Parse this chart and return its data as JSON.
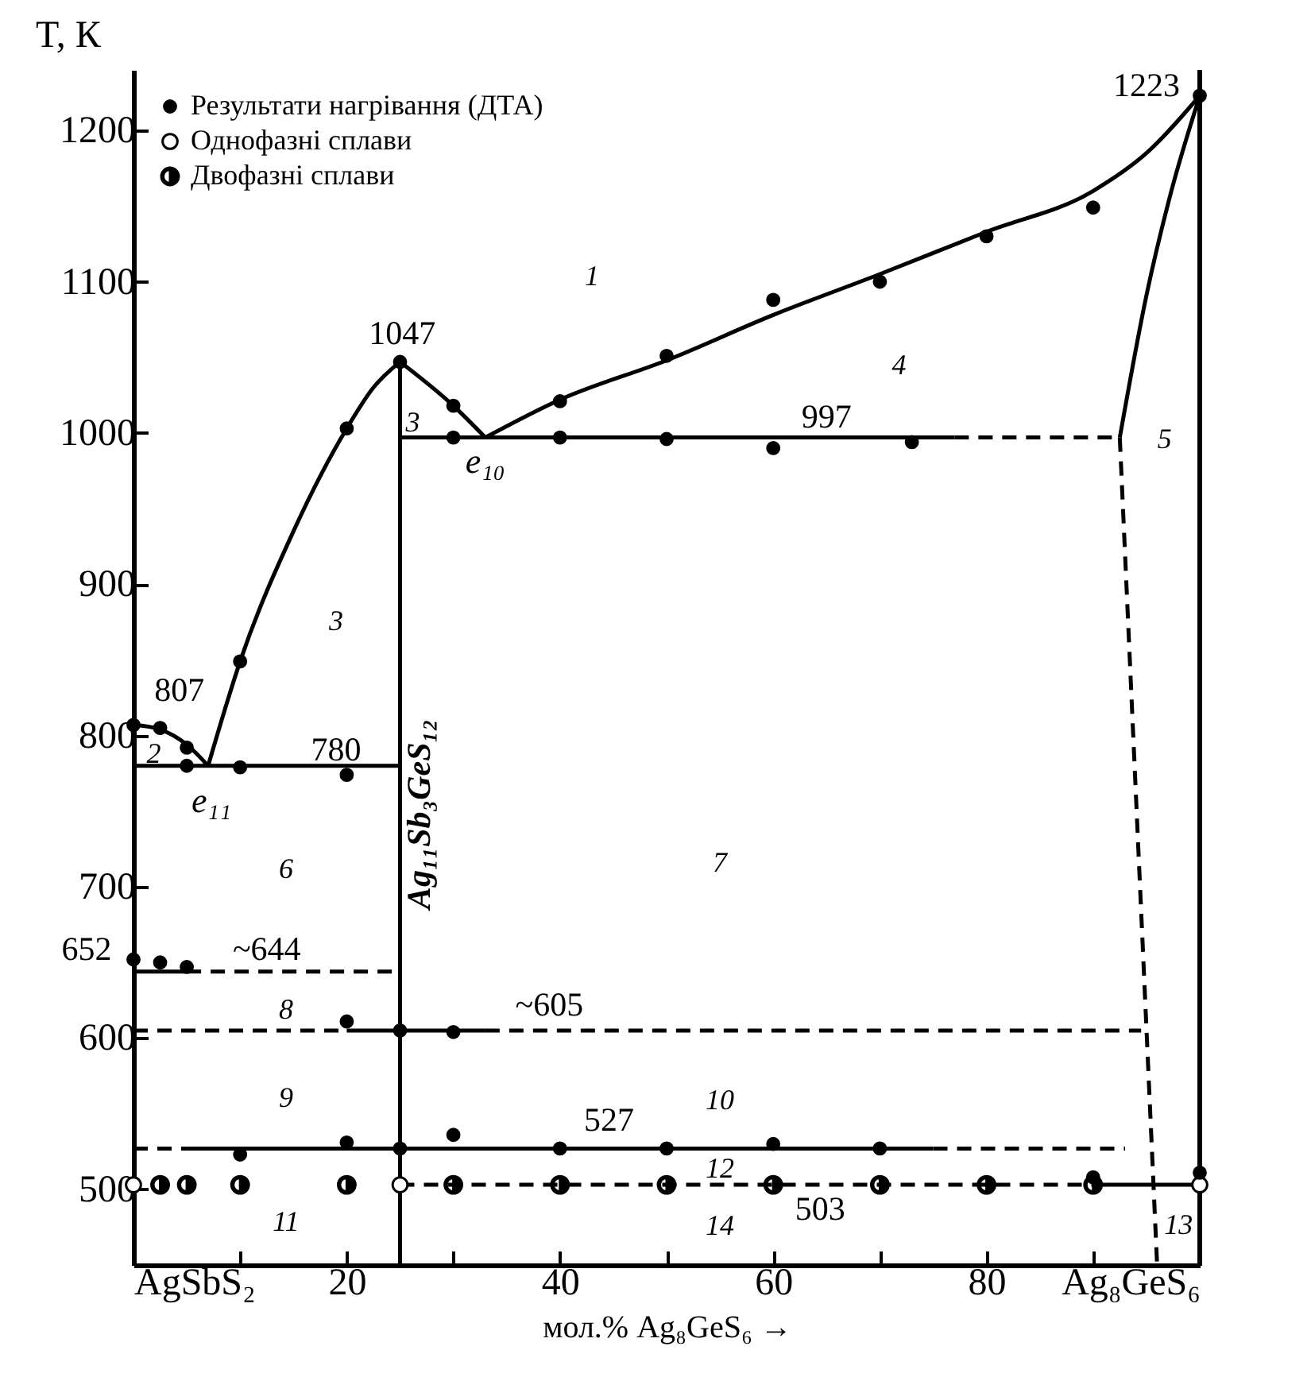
{
  "chart_data": {
    "type": "scatter",
    "xlabel": "мол.% Ag₈GeS₆ →",
    "ylabel": "T, К",
    "xlim": [
      0,
      100
    ],
    "ylim": [
      450,
      1240
    ],
    "xticks": [
      {
        "value": 0,
        "label": "AgSbS₂"
      },
      {
        "value": 10,
        "label": null
      },
      20,
      {
        "value": 30,
        "label": null
      },
      40,
      {
        "value": 50,
        "label": null
      },
      60,
      {
        "value": 70,
        "label": null
      },
      80,
      {
        "value": 90,
        "label": null
      },
      {
        "value": 100,
        "label": "Ag₈GeS₆"
      }
    ],
    "yticks": [
      500,
      600,
      700,
      800,
      900,
      1000,
      1100,
      1200
    ],
    "grid": false,
    "legend": "top left",
    "series": [
      {
        "name": "Результати нагрівання (ДТА)",
        "marker": "circle",
        "color": "#000000",
        "x": [
          0,
          2.5,
          5,
          5,
          10,
          10,
          20,
          20,
          25,
          30,
          30,
          40,
          40,
          50,
          50,
          60,
          60,
          70,
          73,
          80,
          90,
          100,
          0,
          2.5,
          5,
          20,
          25,
          30,
          10,
          20,
          25,
          30,
          40,
          50,
          60,
          70,
          90,
          100
        ],
        "values": [
          807,
          805,
          792,
          780,
          849,
          779,
          1003,
          774,
          1047,
          1018,
          997,
          1021,
          997,
          1051,
          996,
          1088,
          990,
          1100,
          994,
          1130,
          1149,
          1223,
          652,
          650,
          647,
          611,
          605,
          604,
          523,
          531,
          527,
          536,
          527,
          527,
          530,
          527,
          508,
          511
        ]
      },
      {
        "name": "Однофазні сплави",
        "marker": "circle-open",
        "color": "#000000",
        "x": [
          0,
          25,
          100
        ],
        "values": [
          503,
          503,
          503
        ]
      },
      {
        "name": "Двофазні сплави",
        "marker": "circle-half",
        "color": "#000000",
        "x": [
          2.5,
          5,
          10,
          20,
          30,
          40,
          50,
          60,
          70,
          80,
          90
        ],
        "values": [
          503,
          503,
          503,
          503,
          503,
          503,
          503,
          503,
          503,
          503,
          503
        ]
      },
      {
        "type": "line",
        "color": "#000000",
        "line_style": "solid",
        "x": [
          0,
          2.5,
          5,
          7
        ],
        "values": [
          807,
          804,
          794,
          780
        ]
      },
      {
        "type": "line",
        "color": "#000000",
        "line_style": "solid",
        "x": [
          7,
          10,
          15,
          20,
          22.5,
          25
        ],
        "values": [
          780,
          849,
          935,
          1003,
          1030,
          1047
        ]
      },
      {
        "type": "line",
        "color": "#000000",
        "line_style": "solid",
        "x": [
          25,
          30,
          33
        ],
        "values": [
          1047,
          1018,
          997
        ]
      },
      {
        "type": "line",
        "color": "#000000",
        "line_style": "solid",
        "x": [
          33,
          40,
          50,
          60,
          70,
          80,
          90,
          95,
          100
        ],
        "values": [
          997,
          1022,
          1048,
          1078,
          1105,
          1133,
          1160,
          1185,
          1223
        ]
      },
      {
        "type": "line",
        "color": "#000000",
        "line_style": "solid",
        "x": [
          92.5,
          95,
          97.3,
          100
        ],
        "values": [
          997,
          1091,
          1159,
          1223
        ]
      },
      {
        "type": "line",
        "color": "#000000",
        "line_style": "dashed",
        "x": [
          92.5,
          96
        ],
        "values": [
          997,
          450
        ]
      },
      {
        "type": "line",
        "color": "#000000",
        "line_style": "solid",
        "x": [
          25,
          25
        ],
        "values": [
          450,
          1047
        ]
      },
      {
        "type": "line",
        "color": "#000000",
        "line_style": "solid",
        "x": [
          0,
          25
        ],
        "values": [
          780,
          780
        ]
      },
      {
        "type": "line",
        "color": "#000000",
        "line_style": "solid",
        "x": [
          25,
          77
        ],
        "values": [
          997,
          997
        ]
      },
      {
        "type": "line",
        "color": "#000000",
        "line_style": "dashed",
        "x": [
          77,
          92.5
        ],
        "values": [
          997,
          997
        ]
      },
      {
        "type": "line",
        "color": "#000000",
        "line_style": "solid",
        "x": [
          0,
          5
        ],
        "values": [
          644,
          644
        ]
      },
      {
        "type": "line",
        "color": "#000000",
        "line_style": "dashed",
        "x": [
          5,
          25
        ],
        "values": [
          644,
          644
        ]
      },
      {
        "type": "line",
        "color": "#000000",
        "line_style": "dashed",
        "x": [
          0,
          20
        ],
        "values": [
          605,
          605
        ]
      },
      {
        "type": "line",
        "color": "#000000",
        "line_style": "solid",
        "x": [
          20,
          33
        ],
        "values": [
          605,
          605
        ]
      },
      {
        "type": "line",
        "color": "#000000",
        "line_style": "dashed",
        "x": [
          33,
          94.5
        ],
        "values": [
          605,
          605
        ]
      },
      {
        "type": "line",
        "color": "#000000",
        "line_style": "dashed",
        "x": [
          0,
          5
        ],
        "values": [
          527,
          527
        ]
      },
      {
        "type": "line",
        "color": "#000000",
        "line_style": "solid",
        "x": [
          5,
          75
        ],
        "values": [
          527,
          527
        ]
      },
      {
        "type": "line",
        "color": "#000000",
        "line_style": "dashed",
        "x": [
          75,
          93
        ],
        "values": [
          527,
          527
        ]
      },
      {
        "type": "line",
        "color": "#000000",
        "line_style": "dashed",
        "x": [
          25,
          90
        ],
        "values": [
          503,
          503
        ]
      },
      {
        "type": "line",
        "color": "#000000",
        "line_style": "solid",
        "x": [
          90,
          100
        ],
        "values": [
          503,
          503
        ]
      }
    ],
    "ref_lines": [
      {
        "axis": "x",
        "value": 100
      }
    ],
    "annotations": [
      "1223",
      "1047",
      "997",
      "807",
      "780",
      "652",
      "~644",
      "~605",
      "527",
      "503",
      "e₁₁",
      "e₁₀",
      "1",
      "2",
      "3",
      "3",
      "4",
      "5",
      "6",
      "7",
      "8",
      "9",
      "10",
      "11",
      "12",
      "13",
      "14",
      "Ag₁₁Sb₃GeS₁₂"
    ]
  }
}
